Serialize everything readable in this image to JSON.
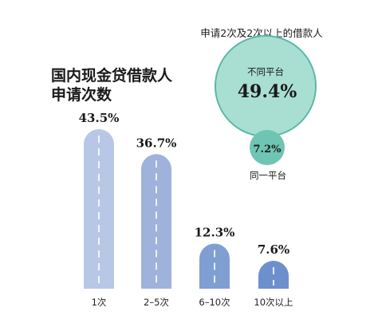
{
  "chart_data": [
    {
      "type": "bar",
      "title_lines": [
        "国内现金贷借款人",
        "申请次数"
      ],
      "categories": [
        "1次",
        "2–5次",
        "6–10次",
        "10次以上"
      ],
      "values": [
        43.5,
        36.7,
        12.3,
        7.6
      ],
      "value_labels": [
        "43.5%",
        "36.7%",
        "12.3%",
        "7.6%"
      ],
      "unit": "%",
      "colors": [
        "#b9c7e6",
        "#9fb2dc",
        "#7f9fd2",
        "#6d90cc"
      ],
      "grid": false,
      "legend": "none"
    },
    {
      "type": "bubble",
      "title": "申请2次及2次以上的借款人",
      "items": [
        {
          "label": "不同平台",
          "value": 49.4,
          "value_label": "49.4%"
        },
        {
          "label": "同一平台",
          "value": 7.2,
          "value_label": "7.2%"
        }
      ],
      "colors": {
        "big_fill": "#a9dfd2",
        "big_stroke": "#5ab8a6",
        "small_fill": "#6fc5b3"
      }
    }
  ]
}
